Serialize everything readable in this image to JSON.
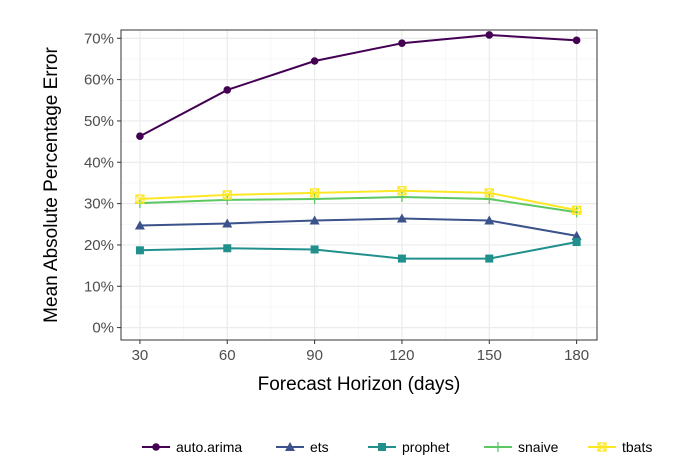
{
  "chart_data": {
    "type": "line",
    "xlabel": "Forecast Horizon (days)",
    "ylabel": "Mean Absolute Percentage Error",
    "x": [
      30,
      60,
      90,
      120,
      150,
      180
    ],
    "x_ticks": [
      "30",
      "60",
      "90",
      "120",
      "150",
      "180"
    ],
    "y_ticks": [
      "0%",
      "10%",
      "20%",
      "30%",
      "40%",
      "50%",
      "60%",
      "70%"
    ],
    "ylim": [
      -3,
      72
    ],
    "xlim": [
      23.5,
      187
    ],
    "grid": true,
    "legend_position": "bottom",
    "series": [
      {
        "name": "auto.arima",
        "color": "#440154",
        "marker": "circle",
        "values": [
          46.3,
          57.5,
          64.5,
          68.8,
          70.8,
          69.5
        ]
      },
      {
        "name": "ets",
        "color": "#3B528B",
        "marker": "triangle",
        "values": [
          24.7,
          25.2,
          25.9,
          26.4,
          25.9,
          22.2
        ]
      },
      {
        "name": "prophet",
        "color": "#21908C",
        "marker": "square",
        "values": [
          18.7,
          19.2,
          18.9,
          16.7,
          16.7,
          20.7
        ]
      },
      {
        "name": "snaive",
        "color": "#5DC863",
        "marker": "plus",
        "values": [
          30.1,
          30.9,
          31.1,
          31.6,
          31.1,
          27.9
        ]
      },
      {
        "name": "tbats",
        "color": "#FDE725",
        "marker": "square-cross",
        "values": [
          31.1,
          32.1,
          32.6,
          33.1,
          32.6,
          28.4
        ]
      }
    ]
  }
}
